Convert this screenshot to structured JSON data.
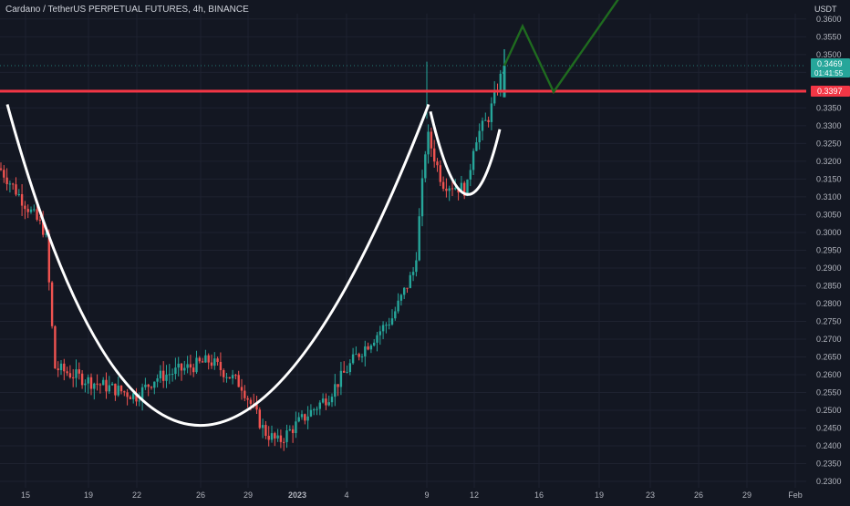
{
  "header": {
    "title": "Cardano / TetherUS PERPETUAL FUTURES, 4h, BINANCE",
    "unit": "USDT"
  },
  "price_axis": {
    "ticks": [
      "0.3600",
      "0.3550",
      "0.3500",
      "0.3450",
      "0.3400",
      "0.3350",
      "0.3300",
      "0.3250",
      "0.3200",
      "0.3150",
      "0.3100",
      "0.3050",
      "0.3000",
      "0.2950",
      "0.2900",
      "0.2850",
      "0.2800",
      "0.2750",
      "0.2700",
      "0.2650",
      "0.2600",
      "0.2550",
      "0.2500",
      "0.2450",
      "0.2400",
      "0.2350",
      "0.2300"
    ]
  },
  "time_axis": {
    "labels": [
      {
        "text": "15",
        "bold": false
      },
      {
        "text": "19",
        "bold": false
      },
      {
        "text": "22",
        "bold": false
      },
      {
        "text": "26",
        "bold": false
      },
      {
        "text": "29",
        "bold": false
      },
      {
        "text": "2023",
        "bold": true
      },
      {
        "text": "4",
        "bold": false
      },
      {
        "text": "9",
        "bold": false
      },
      {
        "text": "12",
        "bold": false
      },
      {
        "text": "16",
        "bold": false
      },
      {
        "text": "19",
        "bold": false
      },
      {
        "text": "23",
        "bold": false
      },
      {
        "text": "26",
        "bold": false
      },
      {
        "text": "29",
        "bold": false
      },
      {
        "text": "Feb",
        "bold": false
      }
    ]
  },
  "badges": {
    "last_price": "0.3469",
    "countdown": "01:41:55",
    "resistance": "0.3397"
  },
  "chart_data": {
    "type": "candlestick",
    "title": "Cardano / TetherUS PERPETUAL FUTURES, 4h, BINANCE",
    "ylabel": "USDT",
    "ylim": [
      0.2295,
      0.3615
    ],
    "colors": {
      "up": "#26a69a",
      "down": "#ef5350",
      "resistance": "#f23645",
      "projection": "#1f6b1f",
      "pattern": "#ffffff",
      "background": "#131722"
    },
    "resistance_level": 0.3397,
    "last_price": 0.3469,
    "series_summary": [
      {
        "date": "Dec 14",
        "close": 0.318
      },
      {
        "date": "Dec 16",
        "close": 0.3
      },
      {
        "date": "Dec 17",
        "close": 0.262
      },
      {
        "date": "Dec 19",
        "close": 0.258
      },
      {
        "date": "Dec 22",
        "close": 0.254
      },
      {
        "date": "Dec 23",
        "close": 0.259
      },
      {
        "date": "Dec 25",
        "close": 0.264
      },
      {
        "date": "Dec 27",
        "close": 0.257
      },
      {
        "date": "Dec 29",
        "close": 0.244
      },
      {
        "date": "Dec 30",
        "close": 0.241
      },
      {
        "date": "Jan 1",
        "close": 0.246
      },
      {
        "date": "Jan 3",
        "close": 0.254
      },
      {
        "date": "Jan 5",
        "close": 0.265
      },
      {
        "date": "Jan 7",
        "close": 0.276
      },
      {
        "date": "Jan 8",
        "close": 0.29
      },
      {
        "date": "Jan 9",
        "close": 0.328
      },
      {
        "date": "Jan 10",
        "close": 0.314
      },
      {
        "date": "Jan 11",
        "close": 0.312
      },
      {
        "date": "Jan 12",
        "close": 0.326
      },
      {
        "date": "Jan 13",
        "close": 0.332
      },
      {
        "date": "Jan 14",
        "close": 0.3469
      }
    ],
    "annotations": [
      {
        "type": "cup",
        "from": "Dec 14",
        "bottom": 0.23,
        "to": "Jan 9"
      },
      {
        "type": "handle",
        "from": "Jan 9",
        "bottom": 0.313,
        "to": "Jan 12"
      },
      {
        "type": "projection",
        "points": [
          0.3469,
          0.358,
          0.3395,
          0.37
        ]
      }
    ]
  }
}
